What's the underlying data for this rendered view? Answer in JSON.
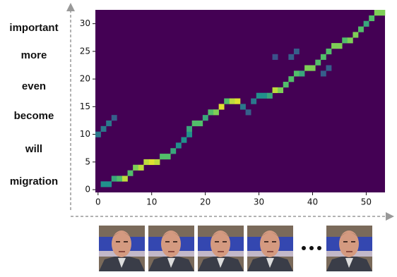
{
  "chart_data": {
    "type": "heatmap",
    "colormap": "viridis",
    "words": [
      "important",
      "more",
      "even",
      "become",
      "will",
      "migration"
    ],
    "xlim": [
      -0.5,
      53.5
    ],
    "ylim": [
      -0.5,
      32.5
    ],
    "xticks": [
      0,
      10,
      20,
      30,
      40,
      50
    ],
    "yticks": [
      0,
      5,
      10,
      15,
      20,
      25,
      30
    ],
    "x": [
      1,
      2,
      3,
      4,
      5,
      6,
      7,
      8,
      9,
      10,
      11,
      12,
      13,
      14,
      15,
      16,
      17,
      17,
      18,
      19,
      20,
      21,
      22,
      23,
      24,
      25,
      26,
      27,
      28,
      29,
      30,
      31,
      32,
      33,
      34,
      35,
      36,
      37,
      38,
      39,
      40,
      41,
      42,
      43,
      44,
      45,
      46,
      47,
      48,
      49,
      50,
      51,
      52,
      53,
      0,
      1,
      2,
      3,
      36,
      37,
      42,
      43,
      33
    ],
    "y": [
      1,
      1,
      2,
      2,
      2,
      3,
      4,
      4,
      5,
      5,
      5,
      6,
      6,
      7,
      8,
      9,
      10,
      11,
      12,
      12,
      13,
      14,
      14,
      15,
      16,
      16,
      16,
      15,
      14,
      16,
      17,
      17,
      17,
      18,
      18,
      19,
      20,
      21,
      21,
      22,
      22,
      23,
      24,
      25,
      26,
      26,
      27,
      27,
      28,
      29,
      30,
      31,
      32,
      32,
      10,
      11,
      12,
      13,
      24,
      25,
      21,
      22,
      24
    ],
    "values": [
      0.5,
      0.5,
      0.6,
      0.7,
      0.9,
      0.7,
      0.8,
      0.9,
      0.9,
      0.95,
      0.9,
      0.7,
      0.7,
      0.6,
      0.5,
      0.5,
      0.5,
      0.6,
      0.7,
      0.7,
      0.6,
      0.7,
      0.8,
      0.95,
      0.7,
      0.9,
      0.95,
      0.4,
      0.3,
      0.4,
      0.5,
      0.5,
      0.6,
      0.9,
      0.8,
      0.7,
      0.7,
      0.7,
      0.6,
      0.8,
      0.8,
      0.7,
      0.7,
      0.7,
      0.8,
      0.8,
      0.7,
      0.8,
      0.8,
      0.7,
      0.6,
      0.7,
      0.8,
      0.8,
      0.4,
      0.4,
      0.4,
      0.3,
      0.3,
      0.3,
      0.3,
      0.3,
      0.25
    ]
  }
}
